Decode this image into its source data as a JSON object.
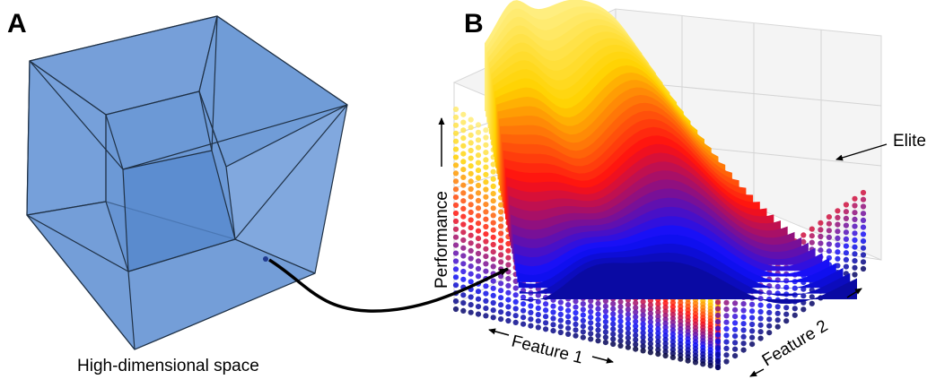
{
  "panel_a": {
    "letter": "A",
    "caption": "High-dimensional space",
    "colors": {
      "fill": "#6b9bd8",
      "edge": "#1f3146"
    }
  },
  "panel_b": {
    "letter": "B",
    "labels": {
      "performance": "Performance",
      "feature1": "Feature 1",
      "feature2": "Feature 2",
      "elite": "Elite"
    },
    "colormap": [
      "#000000",
      "#1010ff",
      "#ff1010",
      "#ffd200",
      "#fff08a"
    ]
  },
  "connector": {
    "color": "#000000"
  }
}
